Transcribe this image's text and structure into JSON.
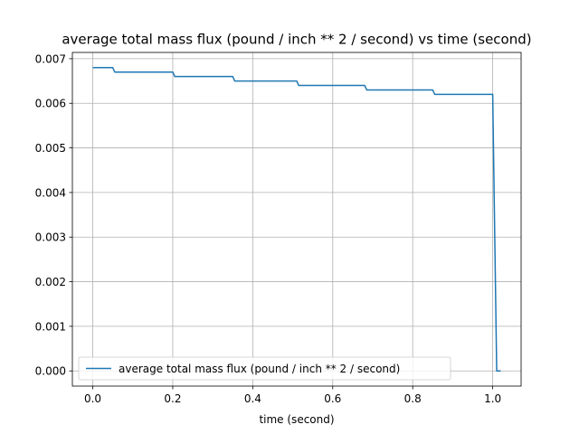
{
  "chart_data": {
    "type": "line",
    "title": "average total mass flux (pound / inch ** 2 / second) vs time (second)",
    "xlabel": "time (second)",
    "ylabel": "",
    "xlim": [
      -0.051,
      1.071
    ],
    "ylim": [
      -0.00034,
      0.00714
    ],
    "xticks": [
      0.0,
      0.2,
      0.4,
      0.6,
      0.8,
      1.0
    ],
    "xtick_labels": [
      "0.0",
      "0.2",
      "0.4",
      "0.6",
      "0.8",
      "1.0"
    ],
    "yticks": [
      0.0,
      0.001,
      0.002,
      0.003,
      0.004,
      0.005,
      0.006,
      0.007
    ],
    "ytick_labels": [
      "0.000",
      "0.001",
      "0.002",
      "0.003",
      "0.004",
      "0.005",
      "0.006",
      "0.007"
    ],
    "grid": true,
    "legend_position": "lower-left",
    "series": [
      {
        "name": "average total mass flux (pound / inch ** 2 / second)",
        "color": "#1f77b4",
        "x": [
          0.0,
          0.05,
          0.055,
          0.2,
          0.205,
          0.35,
          0.355,
          0.51,
          0.515,
          0.68,
          0.685,
          0.85,
          0.855,
          1.0,
          1.01,
          1.02
        ],
        "y": [
          0.0068,
          0.0068,
          0.0067,
          0.0067,
          0.0066,
          0.0066,
          0.0065,
          0.0065,
          0.0064,
          0.0064,
          0.0063,
          0.0063,
          0.0062,
          0.0062,
          0.0,
          0.0
        ]
      }
    ]
  }
}
